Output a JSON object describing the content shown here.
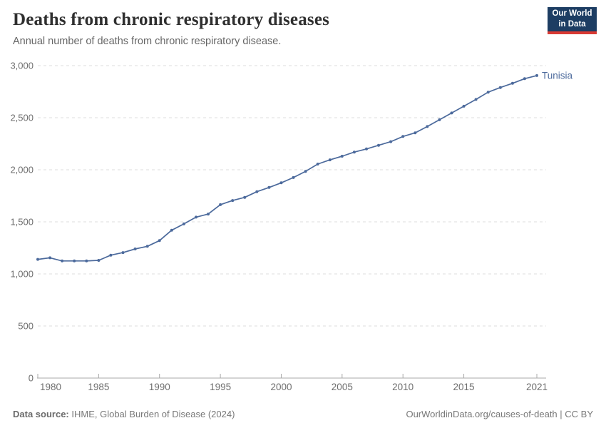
{
  "header": {
    "title": "Deaths from chronic respiratory diseases",
    "subtitle": "Annual number of deaths from chronic respiratory disease."
  },
  "logo": {
    "line1": "Our World",
    "line2": "in Data"
  },
  "chart_data": {
    "type": "line",
    "title": "Deaths from chronic respiratory diseases",
    "xlabel": "",
    "ylabel": "",
    "xlim": [
      1980,
      2021
    ],
    "ylim": [
      0,
      3000
    ],
    "xticks": [
      1980,
      1985,
      1990,
      1995,
      2000,
      2005,
      2010,
      2015,
      2021
    ],
    "yticks": [
      0,
      500,
      1000,
      1500,
      2000,
      2500,
      3000
    ],
    "ytick_labels": [
      "0",
      "500",
      "1,000",
      "1,500",
      "2,000",
      "2,500",
      "3,000"
    ],
    "grid": "horizontal-dashed",
    "legend_position": "end-of-line",
    "series": [
      {
        "name": "Tunisia",
        "color": "#4c6a9c",
        "x": [
          1980,
          1981,
          1982,
          1983,
          1984,
          1985,
          1986,
          1987,
          1988,
          1989,
          1990,
          1991,
          1992,
          1993,
          1994,
          1995,
          1996,
          1997,
          1998,
          1999,
          2000,
          2001,
          2002,
          2003,
          2004,
          2005,
          2006,
          2007,
          2008,
          2009,
          2010,
          2011,
          2012,
          2013,
          2014,
          2015,
          2016,
          2017,
          2018,
          2019,
          2020,
          2021
        ],
        "values": [
          1140,
          1155,
          1125,
          1125,
          1125,
          1130,
          1180,
          1205,
          1240,
          1265,
          1320,
          1420,
          1480,
          1545,
          1575,
          1665,
          1705,
          1735,
          1790,
          1830,
          1875,
          1925,
          1985,
          2055,
          2095,
          2130,
          2170,
          2200,
          2235,
          2270,
          2320,
          2355,
          2415,
          2480,
          2545,
          2610,
          2675,
          2745,
          2790,
          2830,
          2875,
          2905
        ]
      }
    ]
  },
  "footer": {
    "datasource_label": "Data source:",
    "datasource_value": " IHME, Global Burden of Disease (2024)",
    "rights": "OurWorldinData.org/causes-of-death | CC BY"
  },
  "colors": {
    "line": "#4c6a9c",
    "gridline": "#dcdcdc",
    "axis": "#a8a8a8",
    "tick_label": "#6e6e6e",
    "logo_bg": "#1d3d63",
    "logo_accent": "#d93a34"
  }
}
